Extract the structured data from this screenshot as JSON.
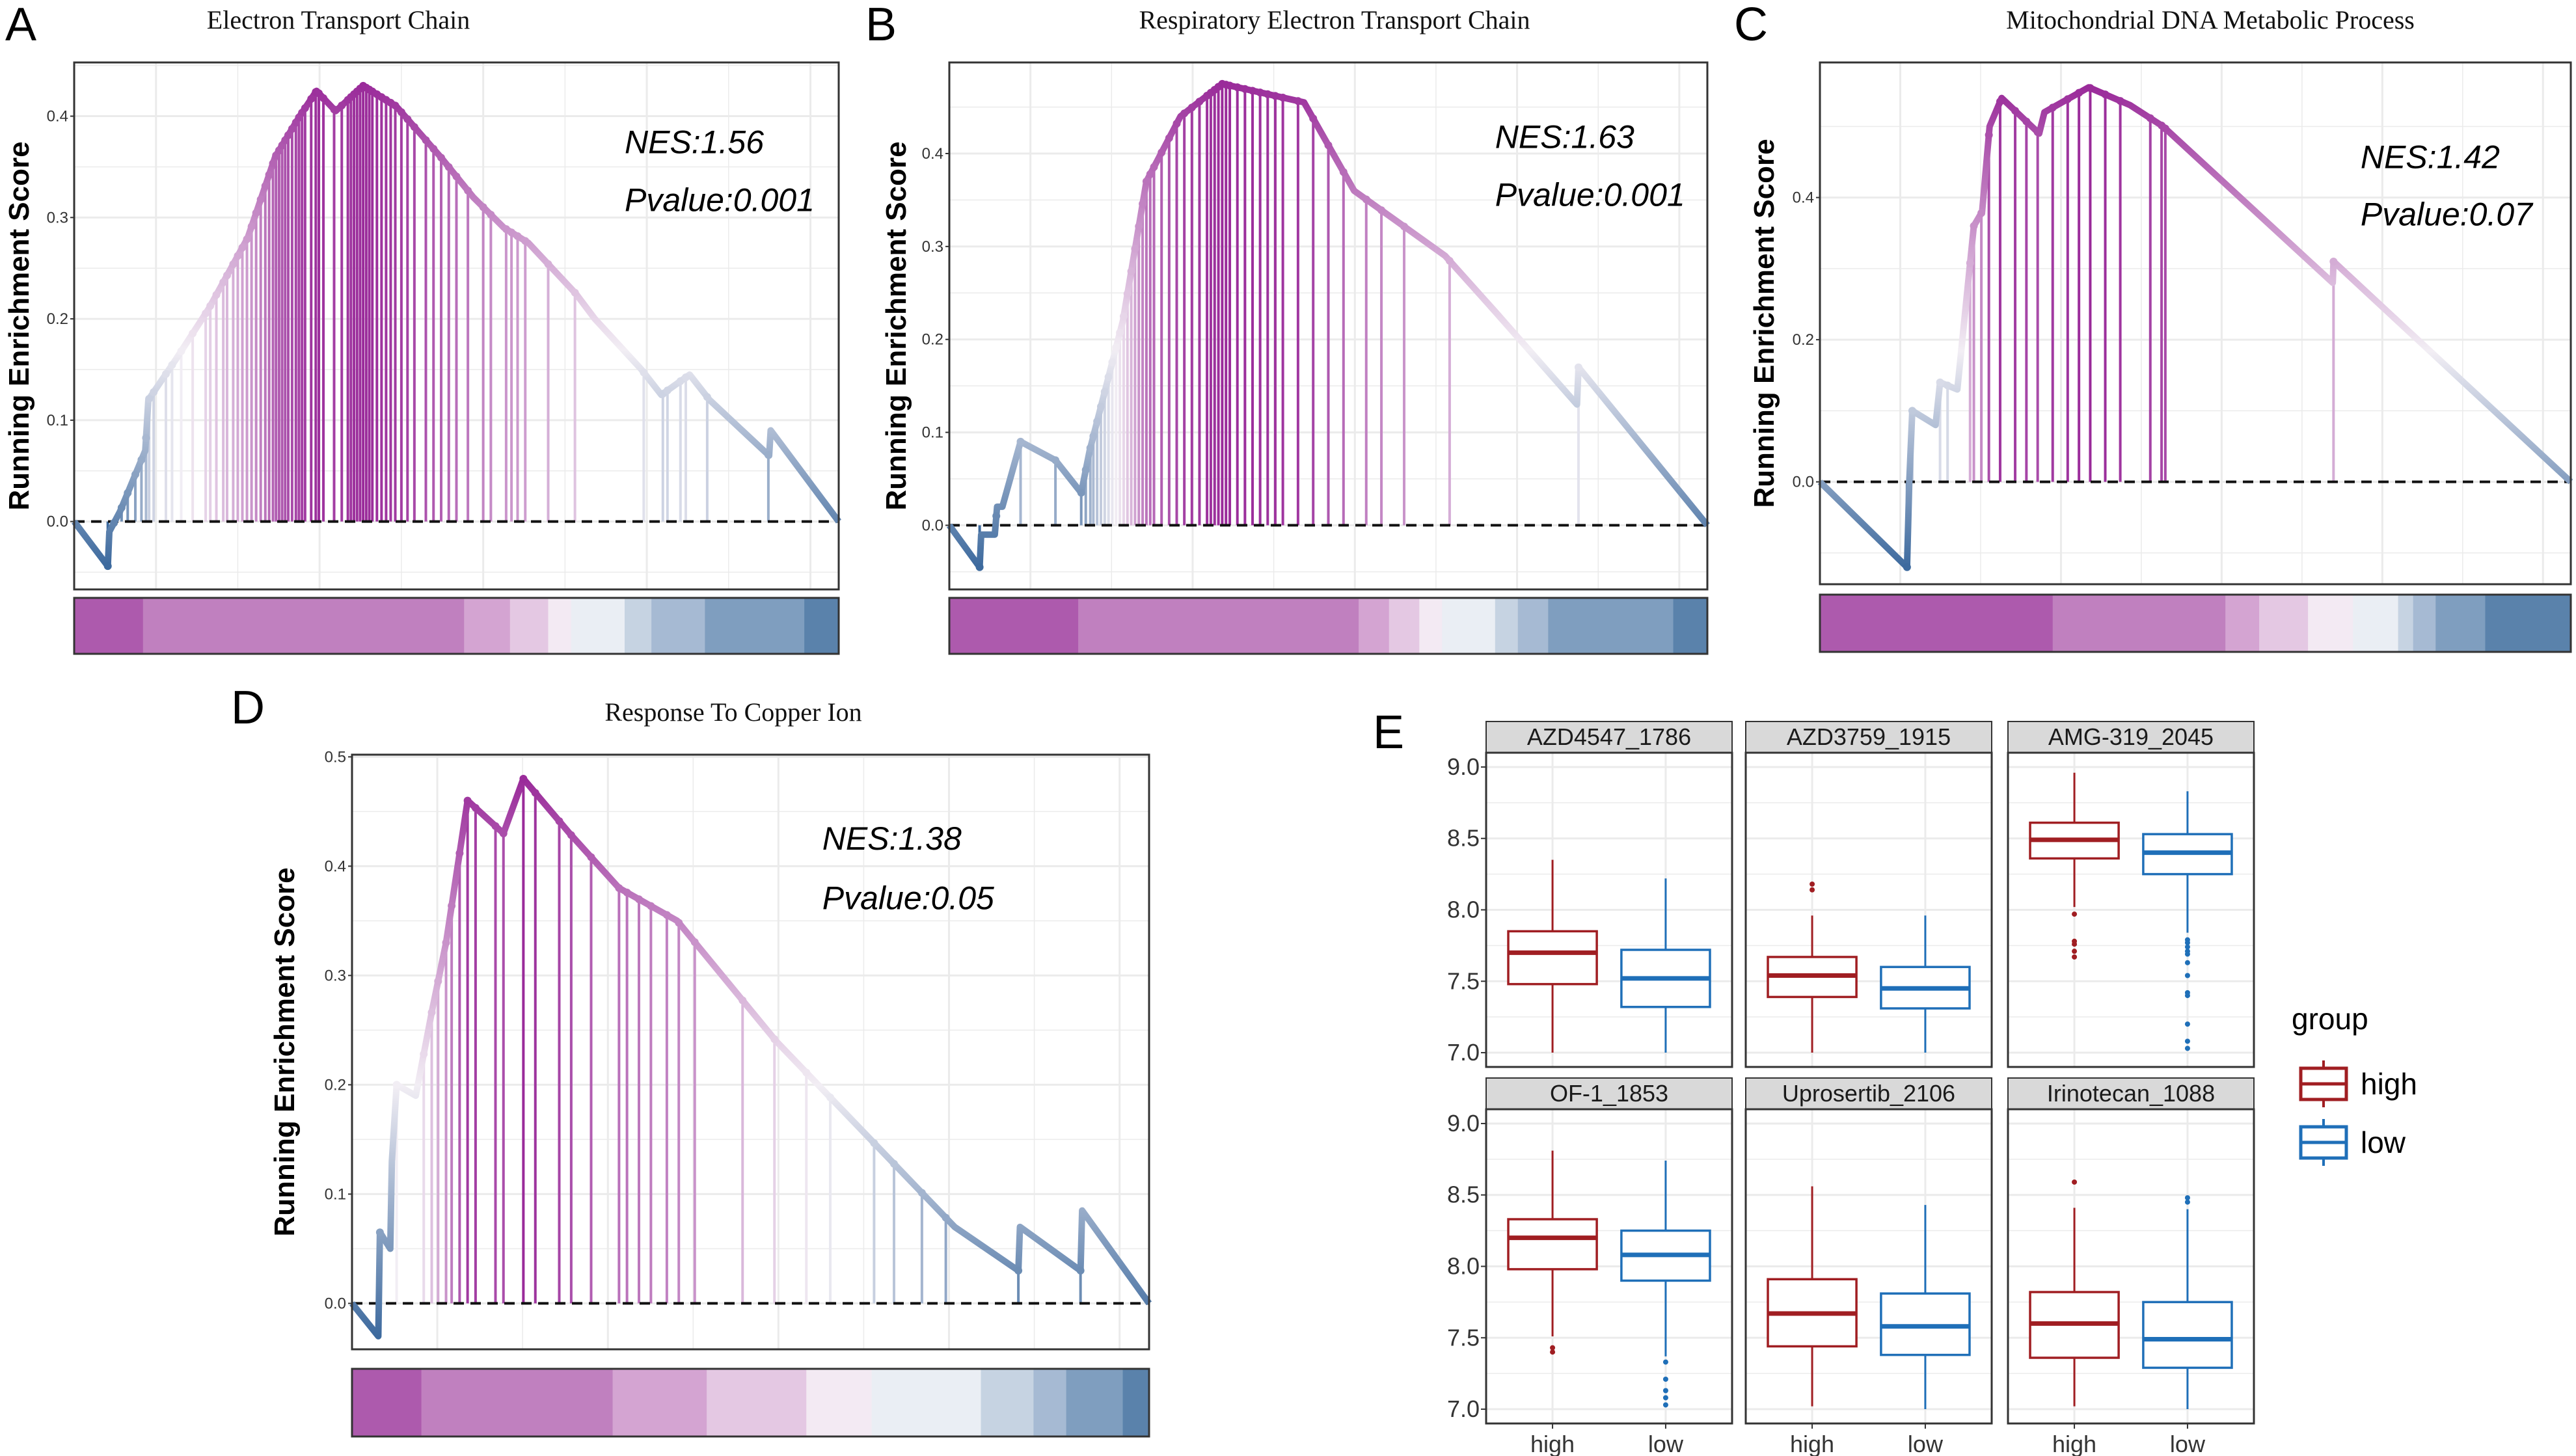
{
  "panel_labels": [
    "A",
    "B",
    "C",
    "D",
    "E"
  ],
  "chart_data": [
    {
      "type": "line",
      "panel": "A",
      "title": "Electron Transport Chain",
      "ylabel": "Running Enrichment Score",
      "annotations": [
        "NES:1.56",
        "Pvalue:0.001"
      ],
      "ylim": [
        -0.067,
        0.453
      ],
      "yticks": [
        0,
        0.1,
        0.2,
        0.3,
        0.4
      ],
      "ytick_labels": [
        "0.0",
        "0.1",
        "0.2",
        "0.3",
        "0.4"
      ],
      "grid": true,
      "running_score": [
        [
          0,
          0
        ],
        [
          0.044,
          -0.044
        ],
        [
          0.046,
          -0.01
        ],
        [
          0.06,
          0.01
        ],
        [
          0.093,
          0.07
        ],
        [
          0.097,
          0.12
        ],
        [
          0.133,
          0.16
        ],
        [
          0.176,
          0.21
        ],
        [
          0.227,
          0.28
        ],
        [
          0.263,
          0.36
        ],
        [
          0.295,
          0.4
        ],
        [
          0.317,
          0.425
        ],
        [
          0.342,
          0.405
        ],
        [
          0.378,
          0.43
        ],
        [
          0.421,
          0.41
        ],
        [
          0.479,
          0.36
        ],
        [
          0.522,
          0.32
        ],
        [
          0.562,
          0.29
        ],
        [
          0.594,
          0.275
        ],
        [
          0.656,
          0.225
        ],
        [
          0.681,
          0.2
        ],
        [
          0.742,
          0.15
        ],
        [
          0.768,
          0.125
        ],
        [
          0.805,
          0.145
        ],
        [
          0.831,
          0.12
        ],
        [
          0.909,
          0.065
        ],
        [
          0.911,
          0.09
        ],
        [
          1,
          0
        ]
      ],
      "hits": [
        0.044,
        0.052,
        0.062,
        0.07,
        0.08,
        0.088,
        0.094,
        0.098,
        0.104,
        0.12,
        0.128,
        0.14,
        0.155,
        0.172,
        0.178,
        0.186,
        0.195,
        0.2,
        0.208,
        0.214,
        0.22,
        0.226,
        0.232,
        0.238,
        0.244,
        0.25,
        0.255,
        0.26,
        0.264,
        0.268,
        0.272,
        0.276,
        0.28,
        0.285,
        0.29,
        0.294,
        0.298,
        0.302,
        0.31,
        0.316,
        0.32,
        0.326,
        0.34,
        0.35,
        0.358,
        0.362,
        0.366,
        0.37,
        0.374,
        0.378,
        0.382,
        0.386,
        0.39,
        0.396,
        0.402,
        0.408,
        0.414,
        0.42,
        0.428,
        0.436,
        0.445,
        0.46,
        0.47,
        0.48,
        0.49,
        0.5,
        0.515,
        0.535,
        0.545,
        0.565,
        0.572,
        0.58,
        0.59,
        0.62,
        0.655,
        0.745,
        0.77,
        0.776,
        0.793,
        0.8,
        0.828,
        0.908
      ],
      "rank_bar": [
        {
          "end": 0.09,
          "color": "#ad5aad"
        },
        {
          "end": 0.51,
          "color": "#c080bf"
        },
        {
          "end": 0.57,
          "color": "#d4a4d2"
        },
        {
          "end": 0.62,
          "color": "#e4c8e3"
        },
        {
          "end": 0.65,
          "color": "#f3eaf3"
        },
        {
          "end": 0.72,
          "color": "#eaeef4"
        },
        {
          "end": 0.755,
          "color": "#c6d3e2"
        },
        {
          "end": 0.825,
          "color": "#a6bad3"
        },
        {
          "end": 0.955,
          "color": "#7f9ebf"
        },
        {
          "end": 1,
          "color": "#5a82ab"
        }
      ]
    },
    {
      "type": "line",
      "panel": "B",
      "title": "Respiratory Electron Transport Chain",
      "ylabel": "Running Enrichment Score",
      "annotations": [
        "NES:1.63",
        "Pvalue:0.001"
      ],
      "ylim": [
        -0.069,
        0.498
      ],
      "yticks": [
        0,
        0.1,
        0.2,
        0.3,
        0.4
      ],
      "ytick_labels": [
        "0.0",
        "0.1",
        "0.2",
        "0.3",
        "0.4"
      ],
      "grid": true,
      "running_score": [
        [
          0,
          0
        ],
        [
          0.04,
          -0.045
        ],
        [
          0.042,
          -0.01
        ],
        [
          0.06,
          -0.01
        ],
        [
          0.063,
          0.02
        ],
        [
          0.07,
          0.02
        ],
        [
          0.094,
          0.09
        ],
        [
          0.14,
          0.07
        ],
        [
          0.174,
          0.035
        ],
        [
          0.185,
          0.08
        ],
        [
          0.229,
          0.22
        ],
        [
          0.26,
          0.37
        ],
        [
          0.305,
          0.44
        ],
        [
          0.36,
          0.475
        ],
        [
          0.468,
          0.455
        ],
        [
          0.534,
          0.36
        ],
        [
          0.654,
          0.29
        ],
        [
          0.72,
          0.23
        ],
        [
          0.828,
          0.13
        ],
        [
          0.83,
          0.17
        ],
        [
          1,
          0
        ]
      ],
      "hits": [
        0.04,
        0.062,
        0.094,
        0.14,
        0.174,
        0.18,
        0.186,
        0.19,
        0.195,
        0.2,
        0.205,
        0.21,
        0.215,
        0.22,
        0.225,
        0.23,
        0.235,
        0.24,
        0.245,
        0.25,
        0.255,
        0.26,
        0.265,
        0.27,
        0.28,
        0.29,
        0.3,
        0.31,
        0.32,
        0.33,
        0.34,
        0.345,
        0.35,
        0.355,
        0.36,
        0.365,
        0.37,
        0.38,
        0.39,
        0.4,
        0.41,
        0.42,
        0.43,
        0.44,
        0.46,
        0.48,
        0.5,
        0.52,
        0.55,
        0.57,
        0.6,
        0.66,
        0.83
      ],
      "rank_bar": [
        {
          "end": 0.17,
          "color": "#ad5aad"
        },
        {
          "end": 0.54,
          "color": "#c080bf"
        },
        {
          "end": 0.58,
          "color": "#d4a4d2"
        },
        {
          "end": 0.62,
          "color": "#e4c8e3"
        },
        {
          "end": 0.65,
          "color": "#f3eaf3"
        },
        {
          "end": 0.72,
          "color": "#eaeef4"
        },
        {
          "end": 0.75,
          "color": "#c6d3e2"
        },
        {
          "end": 0.79,
          "color": "#a6bad3"
        },
        {
          "end": 0.955,
          "color": "#7f9ebf"
        },
        {
          "end": 1,
          "color": "#5a82ab"
        }
      ]
    },
    {
      "type": "line",
      "panel": "C",
      "title": "Mitochondrial DNA Metabolic Process",
      "ylabel": "Running Enrichment Score",
      "annotations": [
        "NES:1.42",
        "Pvalue:0.07"
      ],
      "ylim": [
        -0.144,
        0.59
      ],
      "yticks": [
        0,
        0.2,
        0.4
      ],
      "ytick_labels": [
        "0.0",
        "0.2",
        "0.4"
      ],
      "grid": true,
      "running_score": [
        [
          0,
          0
        ],
        [
          0.116,
          -0.12
        ],
        [
          0.119,
          0
        ],
        [
          0.123,
          0.1
        ],
        [
          0.154,
          0.08
        ],
        [
          0.16,
          0.14
        ],
        [
          0.183,
          0.13
        ],
        [
          0.205,
          0.36
        ],
        [
          0.216,
          0.38
        ],
        [
          0.226,
          0.5
        ],
        [
          0.242,
          0.54
        ],
        [
          0.292,
          0.49
        ],
        [
          0.299,
          0.52
        ],
        [
          0.358,
          0.555
        ],
        [
          0.413,
          0.53
        ],
        [
          0.457,
          0.5
        ],
        [
          0.683,
          0.28
        ],
        [
          0.684,
          0.31
        ],
        [
          1,
          0
        ]
      ],
      "hits": [
        0.116,
        0.123,
        0.16,
        0.17,
        0.2,
        0.205,
        0.215,
        0.225,
        0.24,
        0.26,
        0.275,
        0.29,
        0.31,
        0.33,
        0.345,
        0.36,
        0.38,
        0.4,
        0.44,
        0.455,
        0.46,
        0.684
      ],
      "rank_bar": [
        {
          "end": 0.31,
          "color": "#ad5aad"
        },
        {
          "end": 0.54,
          "color": "#c080bf"
        },
        {
          "end": 0.585,
          "color": "#d4a4d2"
        },
        {
          "end": 0.65,
          "color": "#e4c8e3"
        },
        {
          "end": 0.71,
          "color": "#f3eaf3"
        },
        {
          "end": 0.77,
          "color": "#eaeef4"
        },
        {
          "end": 0.79,
          "color": "#c6d3e2"
        },
        {
          "end": 0.82,
          "color": "#a6bad3"
        },
        {
          "end": 0.886,
          "color": "#7f9ebf"
        },
        {
          "end": 1,
          "color": "#5a82ab"
        }
      ]
    },
    {
      "type": "line",
      "panel": "D",
      "title": "Response To Copper Ion",
      "ylabel": "Running Enrichment Score",
      "annotations": [
        "NES:1.38",
        "Pvalue:0.05"
      ],
      "ylim": [
        -0.042,
        0.502
      ],
      "yticks": [
        0,
        0.1,
        0.2,
        0.3,
        0.4,
        0.5
      ],
      "ytick_labels": [
        "0.0",
        "0.1",
        "0.2",
        "0.3",
        "0.4",
        "0.5"
      ],
      "grid": true,
      "running_score": [
        [
          0,
          0
        ],
        [
          0.033,
          -0.03
        ],
        [
          0.035,
          0.065
        ],
        [
          0.048,
          0.05
        ],
        [
          0.05,
          0.13
        ],
        [
          0.056,
          0.2
        ],
        [
          0.08,
          0.19
        ],
        [
          0.101,
          0.27
        ],
        [
          0.118,
          0.33
        ],
        [
          0.145,
          0.46
        ],
        [
          0.19,
          0.43
        ],
        [
          0.215,
          0.48
        ],
        [
          0.273,
          0.43
        ],
        [
          0.335,
          0.38
        ],
        [
          0.408,
          0.35
        ],
        [
          0.532,
          0.24
        ],
        [
          0.677,
          0.13
        ],
        [
          0.756,
          0.07
        ],
        [
          0.836,
          0.03
        ],
        [
          0.838,
          0.07
        ],
        [
          0.914,
          0.03
        ],
        [
          0.916,
          0.085
        ],
        [
          1,
          0
        ]
      ],
      "hits": [
        0.035,
        0.056,
        0.09,
        0.1,
        0.108,
        0.118,
        0.125,
        0.135,
        0.145,
        0.155,
        0.18,
        0.19,
        0.215,
        0.23,
        0.26,
        0.275,
        0.3,
        0.335,
        0.345,
        0.36,
        0.375,
        0.395,
        0.41,
        0.43,
        0.49,
        0.53,
        0.57,
        0.6,
        0.655,
        0.68,
        0.715,
        0.745,
        0.836,
        0.914
      ],
      "rank_bar": [
        {
          "end": 0.087,
          "color": "#ad5aad"
        },
        {
          "end": 0.327,
          "color": "#c080bf"
        },
        {
          "end": 0.445,
          "color": "#d4a4d2"
        },
        {
          "end": 0.57,
          "color": "#e4c8e3"
        },
        {
          "end": 0.652,
          "color": "#f3eaf3"
        },
        {
          "end": 0.789,
          "color": "#eaeef4"
        },
        {
          "end": 0.855,
          "color": "#c6d3e2"
        },
        {
          "end": 0.896,
          "color": "#a6bad3"
        },
        {
          "end": 0.967,
          "color": "#7f9ebf"
        },
        {
          "end": 1,
          "color": "#5a82ab"
        }
      ]
    },
    {
      "type": "boxplot",
      "panel": "E",
      "ylim": [
        6.9,
        9.1
      ],
      "yticks": [
        7.0,
        7.5,
        8.0,
        8.5,
        9.0
      ],
      "ytick_labels": [
        "7.0",
        "7.5",
        "8.0",
        "8.5",
        "9.0"
      ],
      "categories": [
        "high",
        "low"
      ],
      "legend": {
        "title": "group",
        "position": "right",
        "entries": [
          "high",
          "low"
        ]
      },
      "colors": {
        "high": "#a01e22",
        "low": "#1f6fb8"
      },
      "facets": [
        {
          "name": "AZD4547_1786",
          "boxes": [
            {
              "group": "high",
              "min": 7.0,
              "q1": 7.48,
              "median": 7.7,
              "q3": 7.85,
              "max": 8.35,
              "outliers": []
            },
            {
              "group": "low",
              "min": 7.0,
              "q1": 7.32,
              "median": 7.52,
              "q3": 7.72,
              "max": 8.22,
              "outliers": []
            }
          ]
        },
        {
          "name": "AZD3759_1915",
          "boxes": [
            {
              "group": "high",
              "min": 7.0,
              "q1": 7.39,
              "median": 7.54,
              "q3": 7.67,
              "max": 7.96,
              "outliers": [
                8.18,
                8.14
              ]
            },
            {
              "group": "low",
              "min": 7.0,
              "q1": 7.31,
              "median": 7.45,
              "q3": 7.6,
              "max": 7.96,
              "outliers": []
            }
          ]
        },
        {
          "name": "AMG-319_2045",
          "boxes": [
            {
              "group": "high",
              "min": 8.02,
              "q1": 8.36,
              "median": 8.49,
              "q3": 8.61,
              "max": 8.96,
              "outliers": [
                7.97,
                7.78,
                7.76,
                7.71,
                7.67
              ]
            },
            {
              "group": "low",
              "min": 7.84,
              "q1": 8.25,
              "median": 8.4,
              "q3": 8.53,
              "max": 8.83,
              "outliers": [
                7.79,
                7.77,
                7.74,
                7.71,
                7.69,
                7.63,
                7.54,
                7.42,
                7.4,
                7.2,
                7.08,
                7.03
              ]
            }
          ]
        },
        {
          "name": "OF-1_1853",
          "boxes": [
            {
              "group": "high",
              "min": 7.51,
              "q1": 7.98,
              "median": 8.2,
              "q3": 8.33,
              "max": 8.81,
              "outliers": [
                7.43,
                7.4
              ]
            },
            {
              "group": "low",
              "min": 7.37,
              "q1": 7.9,
              "median": 8.08,
              "q3": 8.25,
              "max": 8.74,
              "outliers": [
                7.33,
                7.21,
                7.13,
                7.08,
                7.03
              ]
            }
          ]
        },
        {
          "name": "Uprosertib_2106",
          "boxes": [
            {
              "group": "high",
              "min": 7.02,
              "q1": 7.44,
              "median": 7.67,
              "q3": 7.91,
              "max": 8.56,
              "outliers": []
            },
            {
              "group": "low",
              "min": 7.0,
              "q1": 7.38,
              "median": 7.58,
              "q3": 7.81,
              "max": 8.43,
              "outliers": []
            }
          ]
        },
        {
          "name": "Irinotecan_1088",
          "boxes": [
            {
              "group": "high",
              "min": 7.02,
              "q1": 7.36,
              "median": 7.6,
              "q3": 7.82,
              "max": 8.41,
              "outliers": [
                8.59
              ]
            },
            {
              "group": "low",
              "min": 7.0,
              "q1": 7.29,
              "median": 7.49,
              "q3": 7.75,
              "max": 8.4,
              "outliers": [
                8.48,
                8.45
              ]
            }
          ]
        }
      ]
    }
  ]
}
